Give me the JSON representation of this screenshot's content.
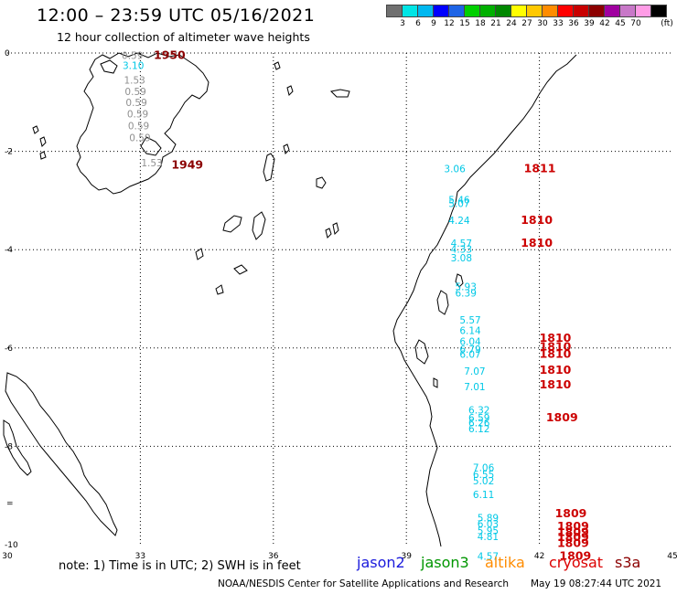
{
  "header": {
    "title": "12:00 – 23:59 UTC 05/16/2021",
    "subtitle": "12 hour collection of altimeter wave heights"
  },
  "colorbar": {
    "unit_label": "(ft)",
    "colors": [
      "#707070",
      "#00e5e5",
      "#00b8f0",
      "#0000ff",
      "#1e64e6",
      "#00d000",
      "#00b000",
      "#008800",
      "#ffff00",
      "#ffc800",
      "#ff8c00",
      "#ff0000",
      "#c80000",
      "#8c0000",
      "#a000a0",
      "#c878c8",
      "#ff9ce6",
      "#000000"
    ],
    "labels": [
      "3",
      "6",
      "9",
      "12",
      "15",
      "18",
      "21",
      "24",
      "27",
      "30",
      "33",
      "36",
      "39",
      "42",
      "45",
      "70"
    ]
  },
  "map": {
    "x_ticks": [
      "30",
      "33",
      "36",
      "39",
      "42",
      "45"
    ],
    "y_ticks": [
      "0",
      "-2",
      "-4",
      "-6",
      "-8",
      "-10"
    ],
    "y_extra_tick": "="
  },
  "chart_data": {
    "type": "map",
    "xlim": [
      30,
      45
    ],
    "ylim": [
      -10,
      0
    ],
    "tracks": [
      {
        "name": "time labels",
        "color": "#cc0000",
        "labels": [
          {
            "text": "1950",
            "lon": 33.3,
            "lat": -0.05,
            "color": "#8b0000"
          },
          {
            "text": "1949",
            "lon": 33.7,
            "lat": -2.28,
            "color": "#8b0000"
          },
          {
            "text": "1811",
            "lon": 41.65,
            "lat": -2.35
          },
          {
            "text": "1810",
            "lon": 41.58,
            "lat": -3.4
          },
          {
            "text": "1810",
            "lon": 41.58,
            "lat": -3.87
          },
          {
            "text": "1810",
            "lon": 42.0,
            "lat": -5.8
          },
          {
            "text": "1810",
            "lon": 42.0,
            "lat": -5.98
          },
          {
            "text": "1810",
            "lon": 42.0,
            "lat": -6.12
          },
          {
            "text": "1810",
            "lon": 42.0,
            "lat": -6.45
          },
          {
            "text": "1810",
            "lon": 42.0,
            "lat": -6.75
          },
          {
            "text": "1809",
            "lon": 42.15,
            "lat": -7.42
          },
          {
            "text": "1809",
            "lon": 42.35,
            "lat": -9.37
          },
          {
            "text": "1809",
            "lon": 42.4,
            "lat": -9.63
          },
          {
            "text": "1809",
            "lon": 42.4,
            "lat": -9.75
          },
          {
            "text": "1809",
            "lon": 42.4,
            "lat": -9.85
          },
          {
            "text": "1809",
            "lon": 42.4,
            "lat": -9.97
          },
          {
            "text": "1809",
            "lon": 42.45,
            "lat": -10.23
          }
        ]
      },
      {
        "name": "lake swh values",
        "values": [
          {
            "text": "0.59",
            "lon": 32.58,
            "lat": -0.05,
            "color": "#909090"
          },
          {
            "text": "3.10",
            "lon": 32.6,
            "lat": -0.25,
            "color": "#00c8e6"
          },
          {
            "text": "1.53",
            "lon": 32.63,
            "lat": -0.55,
            "color": "#909090"
          },
          {
            "text": "0.59",
            "lon": 32.65,
            "lat": -0.78,
            "color": "#909090"
          },
          {
            "text": "0.59",
            "lon": 32.67,
            "lat": -1.0,
            "color": "#909090"
          },
          {
            "text": "0.59",
            "lon": 32.7,
            "lat": -1.24,
            "color": "#909090"
          },
          {
            "text": "0.59",
            "lon": 32.72,
            "lat": -1.48,
            "color": "#909090"
          },
          {
            "text": "0.59",
            "lon": 32.75,
            "lat": -1.72,
            "color": "#909090"
          },
          {
            "text": "1.53",
            "lon": 33.02,
            "lat": -2.23,
            "color": "#909090"
          }
        ]
      },
      {
        "name": "ocean swh values",
        "values": [
          {
            "text": "3.06",
            "lon": 39.85,
            "lat": -2.35,
            "color": "#00c8e6"
          },
          {
            "text": "5.46",
            "lon": 39.95,
            "lat": -2.98,
            "color": "#00c8e6"
          },
          {
            "text": "5.07",
            "lon": 39.95,
            "lat": -3.06,
            "color": "#00c8e6"
          },
          {
            "text": "4.24",
            "lon": 39.95,
            "lat": -3.4,
            "color": "#00c8e6"
          },
          {
            "text": "4.57",
            "lon": 40.0,
            "lat": -3.87,
            "color": "#00c8e6"
          },
          {
            "text": "4.33",
            "lon": 40.0,
            "lat": -3.99,
            "color": "#00c8e6"
          },
          {
            "text": "3.08",
            "lon": 40.0,
            "lat": -4.16,
            "color": "#00c8e6"
          },
          {
            "text": "5.93",
            "lon": 40.1,
            "lat": -4.75,
            "color": "#00c8e6"
          },
          {
            "text": "6.39",
            "lon": 40.1,
            "lat": -4.88,
            "color": "#00c8e6"
          },
          {
            "text": "5.57",
            "lon": 40.2,
            "lat": -5.43,
            "color": "#00c8e6"
          },
          {
            "text": "6.14",
            "lon": 40.2,
            "lat": -5.64,
            "color": "#00c8e6"
          },
          {
            "text": "6.04",
            "lon": 40.2,
            "lat": -5.86,
            "color": "#00c8e6"
          },
          {
            "text": "6.79",
            "lon": 40.2,
            "lat": -6.02,
            "color": "#00c8e6"
          },
          {
            "text": "6.07",
            "lon": 40.2,
            "lat": -6.12,
            "color": "#00c8e6"
          },
          {
            "text": "7.07",
            "lon": 40.3,
            "lat": -6.47,
            "color": "#00c8e6"
          },
          {
            "text": "7.01",
            "lon": 40.3,
            "lat": -6.78,
            "color": "#00c8e6"
          },
          {
            "text": "6.32",
            "lon": 40.4,
            "lat": -7.26,
            "color": "#00c8e6"
          },
          {
            "text": "6.59",
            "lon": 40.4,
            "lat": -7.42,
            "color": "#00c8e6"
          },
          {
            "text": "6.26",
            "lon": 40.4,
            "lat": -7.52,
            "color": "#00c8e6"
          },
          {
            "text": "6.12",
            "lon": 40.4,
            "lat": -7.64,
            "color": "#00c8e6"
          },
          {
            "text": "7.06",
            "lon": 40.5,
            "lat": -8.43,
            "color": "#00c8e6"
          },
          {
            "text": "6.55",
            "lon": 40.5,
            "lat": -8.57,
            "color": "#00c8e6"
          },
          {
            "text": "5.02",
            "lon": 40.5,
            "lat": -8.7,
            "color": "#00c8e6"
          },
          {
            "text": "6.11",
            "lon": 40.5,
            "lat": -8.98,
            "color": "#00c8e6"
          },
          {
            "text": "5.89",
            "lon": 40.6,
            "lat": -9.45,
            "color": "#00c8e6"
          },
          {
            "text": "6.03",
            "lon": 40.6,
            "lat": -9.57,
            "color": "#00c8e6"
          },
          {
            "text": "5.95",
            "lon": 40.6,
            "lat": -9.71,
            "color": "#00c8e6"
          },
          {
            "text": "4.81",
            "lon": 40.6,
            "lat": -9.83,
            "color": "#00c8e6"
          },
          {
            "text": "4.57",
            "lon": 40.6,
            "lat": -10.23,
            "color": "#00c8e6"
          }
        ]
      }
    ]
  },
  "footer": {
    "note": "note:  1) Time is in UTC;  2) SWH is in feet",
    "legend": [
      {
        "name": "jason2",
        "color": "#1a1adc"
      },
      {
        "name": "jason3",
        "color": "#009600"
      },
      {
        "name": "altika",
        "color": "#ff8c00"
      },
      {
        "name": "cryosat",
        "color": "#dc0000"
      },
      {
        "name": "s3a",
        "color": "#8b0000"
      }
    ],
    "credit": "NOAA/NESDIS Center for Satellite Applications and Research",
    "timestamp": "May 19 08:27:44 UTC 2021"
  }
}
